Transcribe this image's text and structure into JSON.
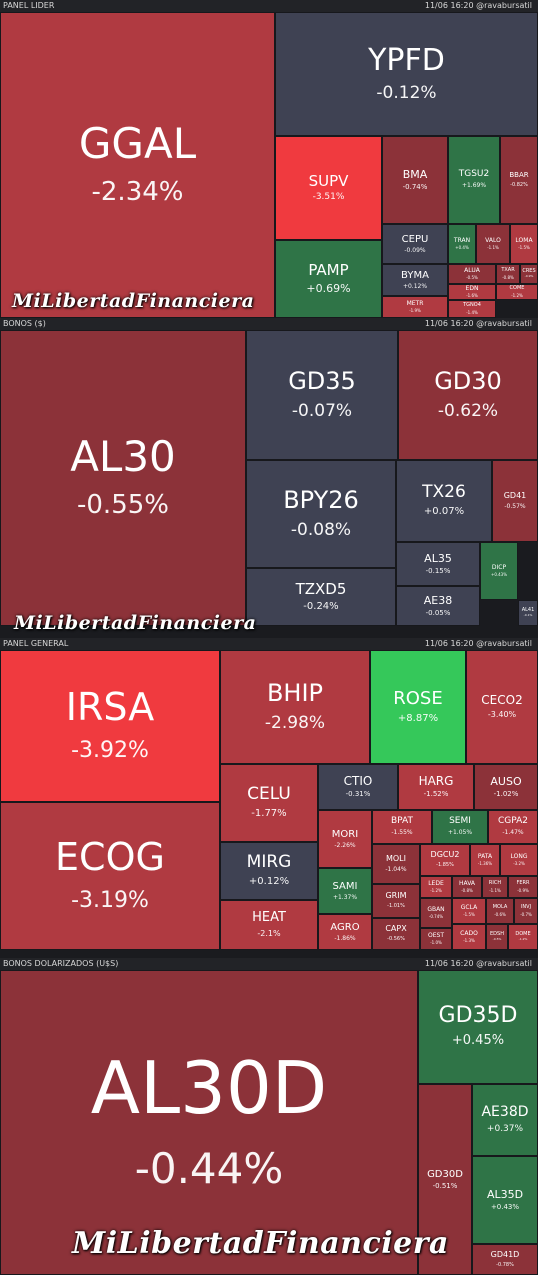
{
  "colors": {
    "dark_red": "#8c3239",
    "red": "#b03a41",
    "bright_red": "#f03a3f",
    "neutral": "#3f4253",
    "green": "#2f7447",
    "bright_green": "#35c85a",
    "header_bg": "#222327"
  },
  "timestamp": "11/06  16:20",
  "handle": "@ravabursatil",
  "watermark": "MiLibertadFinanciera",
  "chart_data": [
    {
      "type": "treemap",
      "title": "PANEL LIDER",
      "items": [
        {
          "symbol": "GGAL",
          "change": "-2.34%"
        },
        {
          "symbol": "YPFD",
          "change": "-0.12%"
        },
        {
          "symbol": "SUPV",
          "change": "-3.51%"
        },
        {
          "symbol": "BMA",
          "change": "-0.74%"
        },
        {
          "symbol": "TGSU2",
          "change": "+1.69%"
        },
        {
          "symbol": "BBAR",
          "change": "-0.82%"
        },
        {
          "symbol": "CEPU",
          "change": "-0.09%"
        },
        {
          "symbol": "PAMP",
          "change": "+0.69%"
        },
        {
          "symbol": "BYMA",
          "change": "+0.12%"
        },
        {
          "symbol": "TRAN",
          "change": "+0.4%"
        },
        {
          "symbol": "VALO",
          "change": "-1.1%"
        },
        {
          "symbol": "LOMA",
          "change": "-1.5%"
        },
        {
          "symbol": "ALUA",
          "change": "-0.5%"
        },
        {
          "symbol": "TXAR",
          "change": "-0.8%"
        },
        {
          "symbol": "CRES",
          "change": "-0.9%"
        },
        {
          "symbol": "EDN",
          "change": "-1.6%"
        },
        {
          "symbol": "COME",
          "change": "-1.2%"
        },
        {
          "symbol": "METR",
          "change": "-1.9%"
        },
        {
          "symbol": "TGNO4",
          "change": "-1.4%"
        }
      ]
    },
    {
      "type": "treemap",
      "title": "BONOS ($)",
      "items": [
        {
          "symbol": "AL30",
          "change": "-0.55%"
        },
        {
          "symbol": "GD35",
          "change": "-0.07%"
        },
        {
          "symbol": "GD30",
          "change": "-0.62%"
        },
        {
          "symbol": "BPY26",
          "change": "-0.08%"
        },
        {
          "symbol": "TX26",
          "change": "+0.07%"
        },
        {
          "symbol": "GD41",
          "change": "-0.57%"
        },
        {
          "symbol": "TZXD5",
          "change": "-0.24%"
        },
        {
          "symbol": "AL35",
          "change": "-0.15%"
        },
        {
          "symbol": "DICP",
          "change": "+0.43%"
        },
        {
          "symbol": "AE38",
          "change": "-0.05%"
        },
        {
          "symbol": "AL41",
          "change": "-0.1%"
        }
      ]
    },
    {
      "type": "treemap",
      "title": "PANEL GENERAL",
      "items": [
        {
          "symbol": "IRSA",
          "change": "-3.92%"
        },
        {
          "symbol": "ECOG",
          "change": "-3.19%"
        },
        {
          "symbol": "BHIP",
          "change": "-2.98%"
        },
        {
          "symbol": "ROSE",
          "change": "+8.87%"
        },
        {
          "symbol": "CECO2",
          "change": "-3.40%"
        },
        {
          "symbol": "CELU",
          "change": "-1.77%"
        },
        {
          "symbol": "CTIO",
          "change": "-0.31%"
        },
        {
          "symbol": "HARG",
          "change": "-1.52%"
        },
        {
          "symbol": "AUSO",
          "change": "-1.02%"
        },
        {
          "symbol": "MORI",
          "change": "-2.26%"
        },
        {
          "symbol": "BPAT",
          "change": "-1.55%"
        },
        {
          "symbol": "SEMI",
          "change": "+1.05%"
        },
        {
          "symbol": "CGPA2",
          "change": "-1.47%"
        },
        {
          "symbol": "MIRG",
          "change": "+0.12%"
        },
        {
          "symbol": "MOLI",
          "change": "-1.04%"
        },
        {
          "symbol": "DGCU2",
          "change": "-1.85%"
        },
        {
          "symbol": "PATA",
          "change": "-1.36%"
        },
        {
          "symbol": "LONG",
          "change": "-3.2%"
        },
        {
          "symbol": "SAMI",
          "change": "+1.37%"
        },
        {
          "symbol": "GRIM",
          "change": "-1.01%"
        },
        {
          "symbol": "LEDE",
          "change": "-1.2%"
        },
        {
          "symbol": "HAVA",
          "change": "-0.8%"
        },
        {
          "symbol": "RICH",
          "change": "-1.1%"
        },
        {
          "symbol": "FERR",
          "change": "-0.9%"
        },
        {
          "symbol": "HEAT",
          "change": "-2.1%"
        },
        {
          "symbol": "AGRO",
          "change": "-1.86%"
        },
        {
          "symbol": "CAPX",
          "change": "-0.56%"
        },
        {
          "symbol": "GBAN",
          "change": "-0.74%"
        },
        {
          "symbol": "OEST",
          "change": "-1.0%"
        },
        {
          "symbol": "GCLA",
          "change": "-1.5%"
        },
        {
          "symbol": "MOLA",
          "change": "-0.6%"
        },
        {
          "symbol": "INVJ",
          "change": "-0.7%"
        },
        {
          "symbol": "CADO",
          "change": "-1.3%"
        },
        {
          "symbol": "EDSH",
          "change": "-0.5%"
        },
        {
          "symbol": "FIPL",
          "change": "-0.98%"
        },
        {
          "symbol": "DOME",
          "change": "-1.2%"
        },
        {
          "symbol": "GARO",
          "change": "-0.9%"
        },
        {
          "symbol": "POLL",
          "change": "-1.4%"
        }
      ]
    },
    {
      "type": "treemap",
      "title": "BONOS DOLARIZADOS (U$S)",
      "items": [
        {
          "symbol": "AL30D",
          "change": "-0.44%"
        },
        {
          "symbol": "GD35D",
          "change": "+0.45%"
        },
        {
          "symbol": "GD30D",
          "change": "-0.51%"
        },
        {
          "symbol": "AE38D",
          "change": "+0.37%"
        },
        {
          "symbol": "AL35D",
          "change": "+0.43%"
        },
        {
          "symbol": "GD41D",
          "change": "-0.78%"
        }
      ]
    }
  ]
}
